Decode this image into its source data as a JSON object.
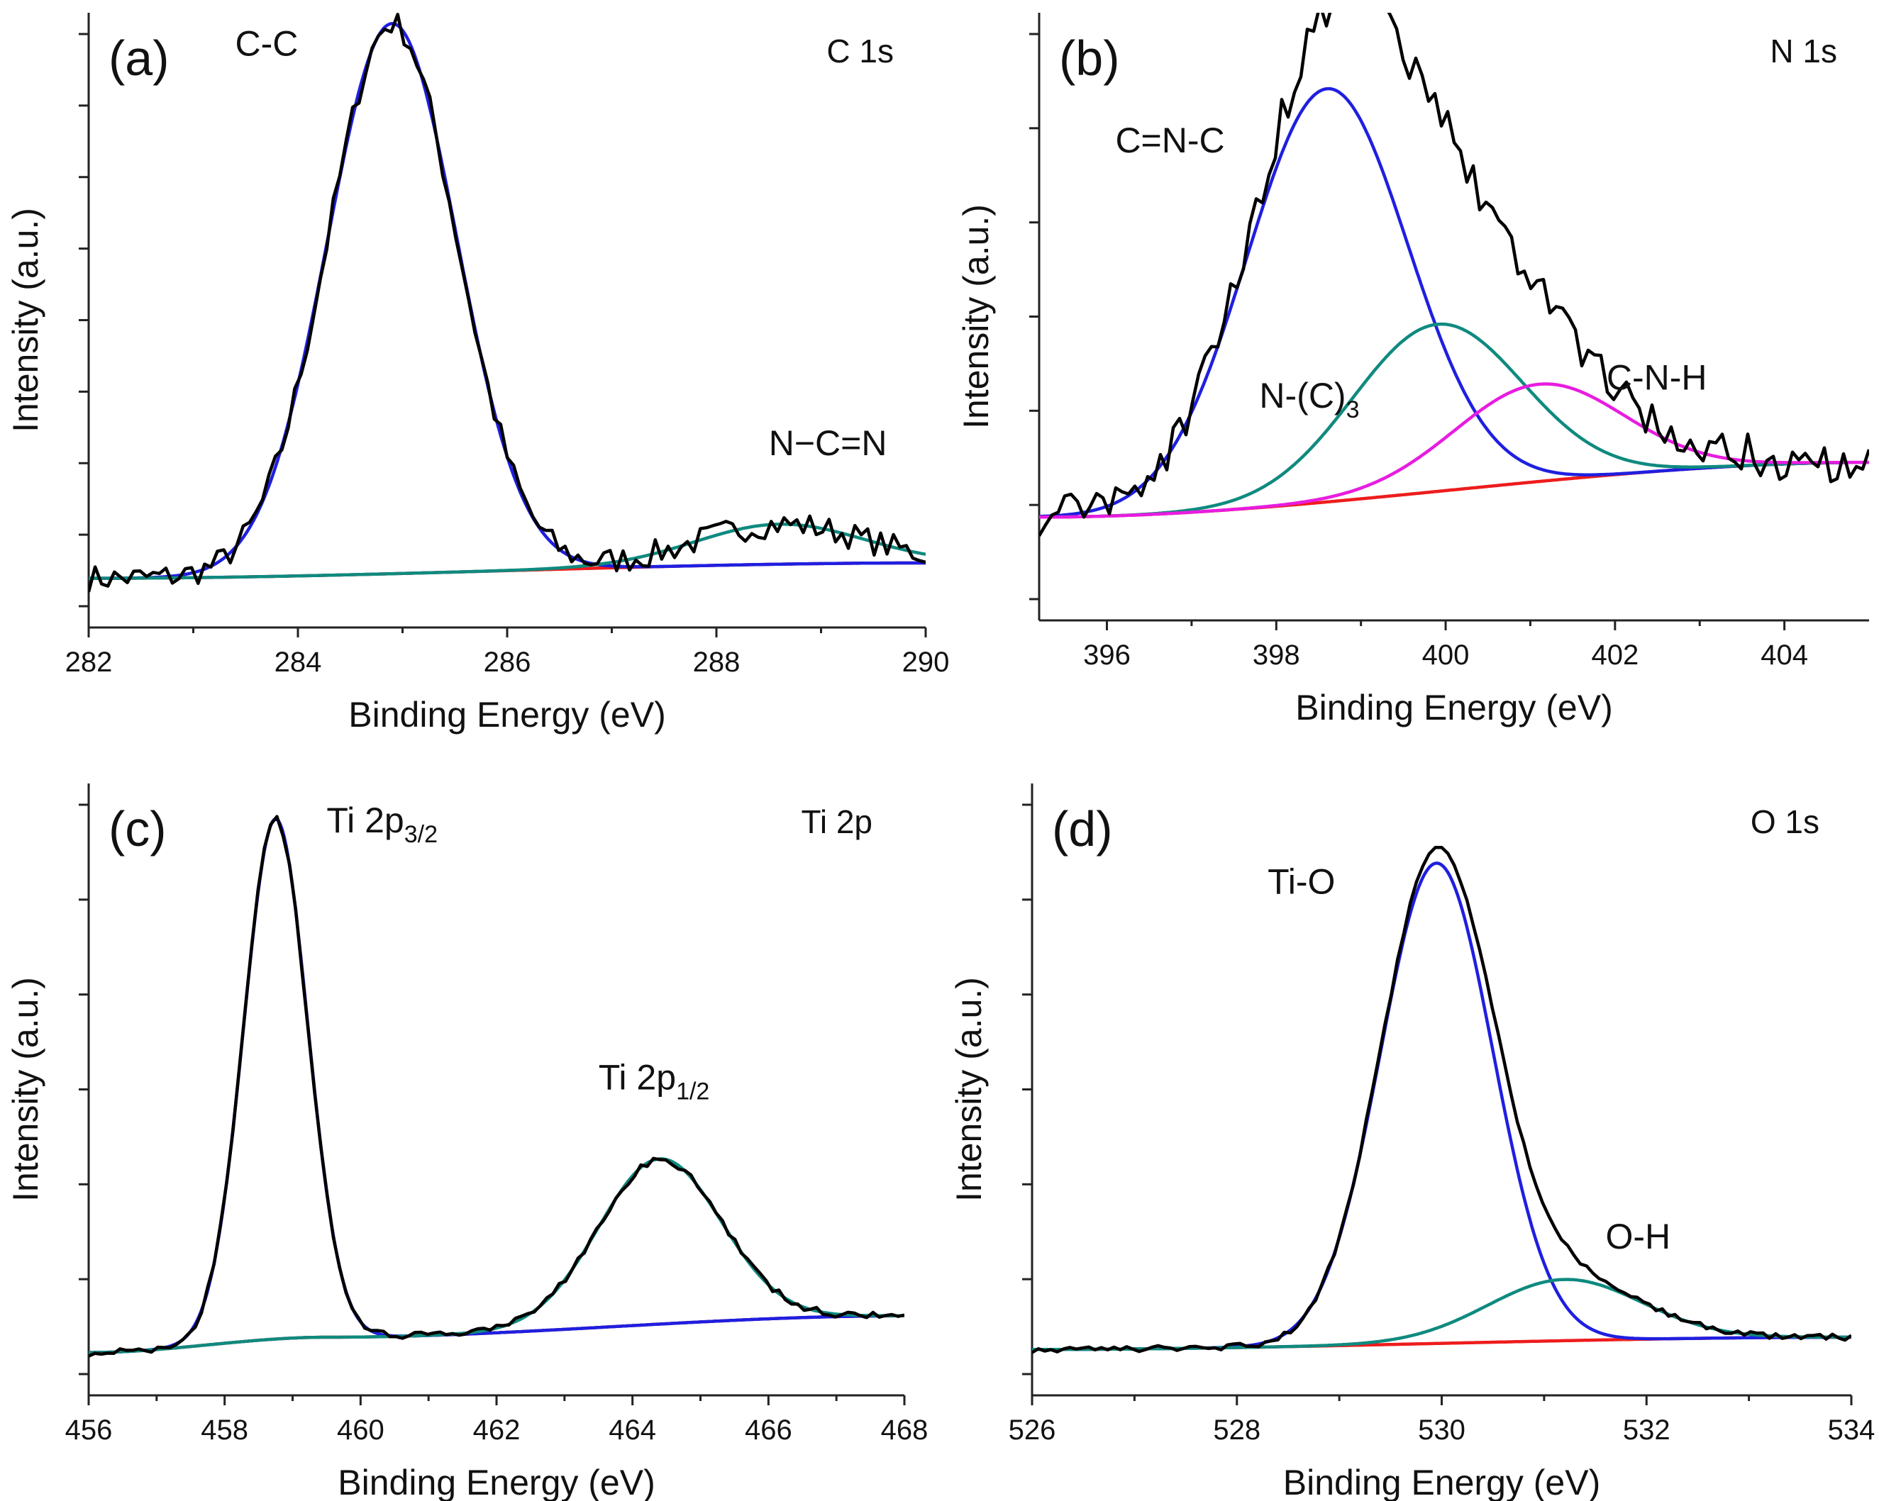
{
  "chart_data": [
    {
      "id": "a",
      "type": "line",
      "panel_label": "(a)",
      "region_label": "C 1s",
      "xlabel": "Binding Energy (eV)",
      "ylabel": "Intensity (a.u.)",
      "xlim": [
        282,
        290
      ],
      "ylim": [
        0,
        100
      ],
      "xticks": [
        282,
        284,
        286,
        288,
        290
      ],
      "yticks_count": 8,
      "colors": {
        "raw": "#000000",
        "background": "#ee1c1c",
        "fits": [
          "#1f1fe0",
          "#0f8a7f"
        ]
      },
      "background": {
        "x": [
          282,
          290
        ],
        "y": [
          8.0,
          10.5
        ]
      },
      "peaks": [
        {
          "name": "C-C",
          "center": 284.9,
          "height": 89.5,
          "sigma": 0.62
        },
        {
          "name": "N−C=N",
          "center": 288.6,
          "height": 6.5,
          "sigma": 0.8
        }
      ],
      "raw_noise": 2.2,
      "annotations": [
        {
          "text": "C-C",
          "x": 283.4,
          "y": 93
        },
        {
          "text": "N−C=N",
          "x": 288.5,
          "y": 28
        }
      ]
    },
    {
      "id": "b",
      "type": "line",
      "panel_label": "(b)",
      "region_label": "N 1s",
      "xlabel": "Binding Energy (eV)",
      "ylabel": "Intensity (a.u.)",
      "xlim": [
        395.2,
        405
      ],
      "ylim": [
        0,
        100
      ],
      "xticks": [
        396,
        398,
        400,
        402,
        404
      ],
      "yticks_count": 6,
      "colors": {
        "raw": "#000000",
        "background": "#ee1c1c",
        "fits": [
          "#1f1fe0",
          "#0f8a7f",
          "#e81ce0"
        ]
      },
      "background": {
        "x": [
          395.2,
          405
        ],
        "y": [
          17.0,
          26.0
        ]
      },
      "peaks": [
        {
          "name": "C=N-C",
          "center": 398.6,
          "height": 68.0,
          "sigma": 0.95
        },
        {
          "name": "N-(C)3",
          "center": 399.9,
          "height": 27.5,
          "sigma": 1.0
        },
        {
          "name": "C-N-H",
          "center": 401.1,
          "height": 16.0,
          "sigma": 1.0
        }
      ],
      "raw_noise": 3.2,
      "annotations": [
        {
          "text": "C=N-C",
          "x": 396.1,
          "y": 77
        },
        {
          "text": "N-(C)",
          "sub": "3",
          "x": 397.8,
          "y": 35
        },
        {
          "text": "C-N-H",
          "x": 401.9,
          "y": 38
        }
      ]
    },
    {
      "id": "c",
      "type": "line",
      "panel_label": "(c)",
      "region_label": "Ti 2p",
      "xlabel": "Binding Energy (eV)",
      "ylabel": "Intensity (a.u.)",
      "xlim": [
        456,
        468
      ],
      "ylim": [
        0,
        100
      ],
      "xticks": [
        456,
        458,
        460,
        462,
        464,
        466,
        468
      ],
      "yticks_count": 6,
      "colors": {
        "raw": "#000000",
        "background": "#ee1c1c",
        "fits": [
          "#1f1fe0",
          "#0f8a7f"
        ]
      },
      "background": {
        "x": [
          456,
          459.5,
          468
        ],
        "y": [
          7.0,
          9.5,
          13.0
        ]
      },
      "peaks": [
        {
          "name": "Ti 2p3/2",
          "center": 458.75,
          "height": 85.0,
          "sigma": 0.47
        },
        {
          "name": "Ti 2p1/2",
          "center": 464.4,
          "height": 27.0,
          "sigma": 0.9
        }
      ],
      "raw_noise": 0.6,
      "annotations": [
        {
          "text": "Ti 2p",
          "sub": "3/2",
          "x": 459.5,
          "y": 92
        },
        {
          "text": "Ti 2p",
          "sub": "1/2",
          "x": 463.5,
          "y": 50
        }
      ]
    },
    {
      "id": "d",
      "type": "line",
      "panel_label": "(d)",
      "region_label": "O 1s",
      "xlabel": "Binding Energy (eV)",
      "ylabel": "Intensity (a.u.)",
      "xlim": [
        526,
        534
      ],
      "ylim": [
        0,
        100
      ],
      "xticks": [
        526,
        528,
        530,
        532,
        534
      ],
      "yticks_count": 6,
      "colors": {
        "raw": "#000000",
        "background": "#ee1c1c",
        "fits": [
          "#1f1fe0",
          "#0f8a7f"
        ]
      },
      "background": {
        "x": [
          526,
          534
        ],
        "y": [
          7.5,
          9.5
        ]
      },
      "peaks": [
        {
          "name": "Ti-O",
          "center": 529.95,
          "height": 78.5,
          "sigma": 0.55
        },
        {
          "name": "O-H",
          "center": 531.2,
          "height": 10.0,
          "sigma": 0.75
        }
      ],
      "raw_noise": 0.5,
      "annotations": [
        {
          "text": "Ti-O",
          "x": 528.3,
          "y": 82
        },
        {
          "text": "O-H",
          "x": 531.6,
          "y": 24
        }
      ]
    }
  ]
}
